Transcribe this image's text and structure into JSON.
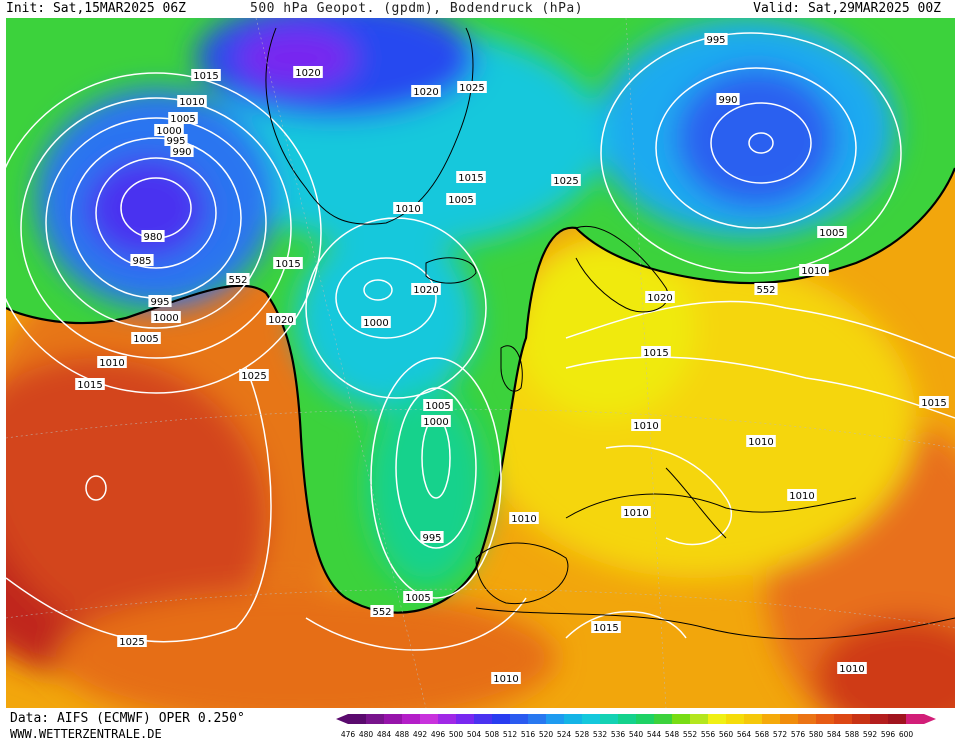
{
  "header": {
    "init": "Init: Sat,15MAR2025 06Z",
    "title": "500 hPa Geopot. (gpdm), Bodendruck (hPa)",
    "valid": "Valid: Sat,29MAR2025 00Z"
  },
  "footer": {
    "source": "Data: AIFS (ECMWF) OPER 0.250°",
    "site": "WWW.WETTERZENTRALE.DE"
  },
  "legend": {
    "values": [
      "476",
      "480",
      "484",
      "488",
      "492",
      "496",
      "500",
      "504",
      "508",
      "512",
      "516",
      "520",
      "524",
      "528",
      "532",
      "536",
      "540",
      "544",
      "548",
      "552",
      "556",
      "560",
      "564",
      "568",
      "572",
      "576",
      "580",
      "584",
      "588",
      "592",
      "596",
      "600"
    ],
    "colors": [
      "#5a0a6e",
      "#78148c",
      "#9614aa",
      "#b41ec8",
      "#c832dc",
      "#a028e6",
      "#7828f0",
      "#4a32f0",
      "#283cf0",
      "#2a5af0",
      "#2878f0",
      "#1e9bf0",
      "#14b4e6",
      "#14c8dc",
      "#14d2b4",
      "#14d28c",
      "#1ed264",
      "#3cd23c",
      "#78dc14",
      "#b4e61e",
      "#f0f014",
      "#f5dc0a",
      "#f5c80a",
      "#f5aa0a",
      "#f08c0a",
      "#eb7314",
      "#e65a14",
      "#dc4614",
      "#c83214",
      "#b41e1e",
      "#a0141e",
      "#d21e78"
    ]
  },
  "contour_labels": [
    {
      "text": "1015"
    },
    {
      "text": "1020"
    },
    {
      "text": "1020"
    },
    {
      "text": "1025"
    },
    {
      "text": "995"
    },
    {
      "text": "990"
    },
    {
      "text": "1010"
    },
    {
      "text": "1005"
    },
    {
      "text": "1000"
    },
    {
      "text": "995"
    },
    {
      "text": "990"
    },
    {
      "text": "980"
    },
    {
      "text": "985"
    },
    {
      "text": "995"
    },
    {
      "text": "1000"
    },
    {
      "text": "1005"
    },
    {
      "text": "1010"
    },
    {
      "text": "1015"
    },
    {
      "text": "552"
    },
    {
      "text": "1015"
    },
    {
      "text": "1020"
    },
    {
      "text": "1020"
    },
    {
      "text": "1015"
    },
    {
      "text": "1005"
    },
    {
      "text": "1010"
    },
    {
      "text": "1025"
    },
    {
      "text": "1000"
    },
    {
      "text": "1025"
    },
    {
      "text": "1005"
    },
    {
      "text": "1000"
    },
    {
      "text": "995"
    },
    {
      "text": "1005"
    },
    {
      "text": "552"
    },
    {
      "text": "1010"
    },
    {
      "text": "1020"
    },
    {
      "text": "1015"
    },
    {
      "text": "552"
    },
    {
      "text": "1005"
    },
    {
      "text": "1010"
    },
    {
      "text": "1010"
    },
    {
      "text": "1010"
    },
    {
      "text": "1010"
    },
    {
      "text": "1010"
    },
    {
      "text": "1015"
    },
    {
      "text": "1015"
    },
    {
      "text": "1010"
    },
    {
      "text": "1025"
    },
    {
      "text": "1010"
    }
  ]
}
